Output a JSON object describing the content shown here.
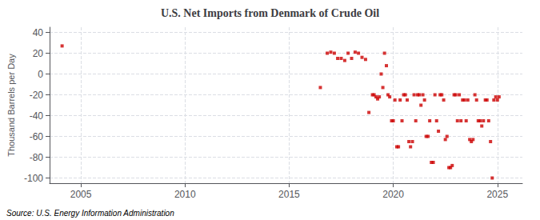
{
  "chart_data": {
    "type": "scatter",
    "title": "U.S. Net Imports from Denmark of Crude Oil",
    "ylabel": "Thousand Barrels per Day",
    "annotations": [
      "Source: U.S. Energy Information Administration"
    ],
    "xlim": [
      2003.5,
      2026.2
    ],
    "ylim": [
      -105,
      45
    ],
    "xticks": [
      2005,
      2010,
      2015,
      2020,
      2025
    ],
    "yticks": [
      -100,
      -80,
      -60,
      -40,
      -20,
      0,
      20,
      40
    ],
    "grid": true,
    "color": "#cc0000",
    "marker": "square",
    "x": [
      2004.1,
      2016.5,
      2016.83,
      2017.0,
      2017.17,
      2017.33,
      2017.5,
      2017.67,
      2017.83,
      2018.0,
      2018.17,
      2018.33,
      2018.5,
      2018.67,
      2018.83,
      2019.0,
      2019.08,
      2019.17,
      2019.25,
      2019.33,
      2019.42,
      2019.5,
      2019.58,
      2019.67,
      2019.75,
      2019.83,
      2019.92,
      2020.0,
      2020.08,
      2020.17,
      2020.25,
      2020.33,
      2020.42,
      2020.5,
      2020.58,
      2020.67,
      2020.75,
      2020.83,
      2020.92,
      2021.0,
      2021.08,
      2021.17,
      2021.25,
      2021.33,
      2021.42,
      2021.5,
      2021.58,
      2021.67,
      2021.75,
      2021.83,
      2021.92,
      2022.0,
      2022.08,
      2022.17,
      2022.25,
      2022.33,
      2022.42,
      2022.5,
      2022.58,
      2022.67,
      2022.75,
      2022.83,
      2022.92,
      2023.0,
      2023.08,
      2023.17,
      2023.25,
      2023.33,
      2023.42,
      2023.5,
      2023.58,
      2023.67,
      2023.75,
      2023.83,
      2023.92,
      2024.0,
      2024.08,
      2024.17,
      2024.25,
      2024.33,
      2024.42,
      2024.5,
      2024.58,
      2024.67,
      2024.75,
      2024.83,
      2024.92,
      2025.0,
      2025.08
    ],
    "values": [
      27,
      -13,
      20,
      21,
      20,
      15,
      15,
      13,
      20,
      15,
      21,
      20,
      16,
      14,
      -37,
      -20,
      -20,
      -22,
      -24,
      -22,
      0,
      -13,
      20,
      8,
      -20,
      -22,
      -45,
      -45,
      -25,
      -70,
      -70,
      -25,
      -45,
      -20,
      -20,
      -25,
      -65,
      -70,
      -65,
      -20,
      -45,
      -20,
      -20,
      -30,
      -20,
      -25,
      -60,
      -60,
      -45,
      -85,
      -85,
      -20,
      -45,
      -55,
      -20,
      -20,
      -25,
      -63,
      -60,
      -90,
      -90,
      -88,
      -20,
      -20,
      -45,
      -20,
      -45,
      -25,
      -25,
      -45,
      -25,
      -63,
      -65,
      -63,
      -20,
      -25,
      -45,
      -45,
      -50,
      -45,
      -25,
      -25,
      -45,
      -65,
      -100,
      -25,
      -22,
      -25,
      -22
    ]
  }
}
